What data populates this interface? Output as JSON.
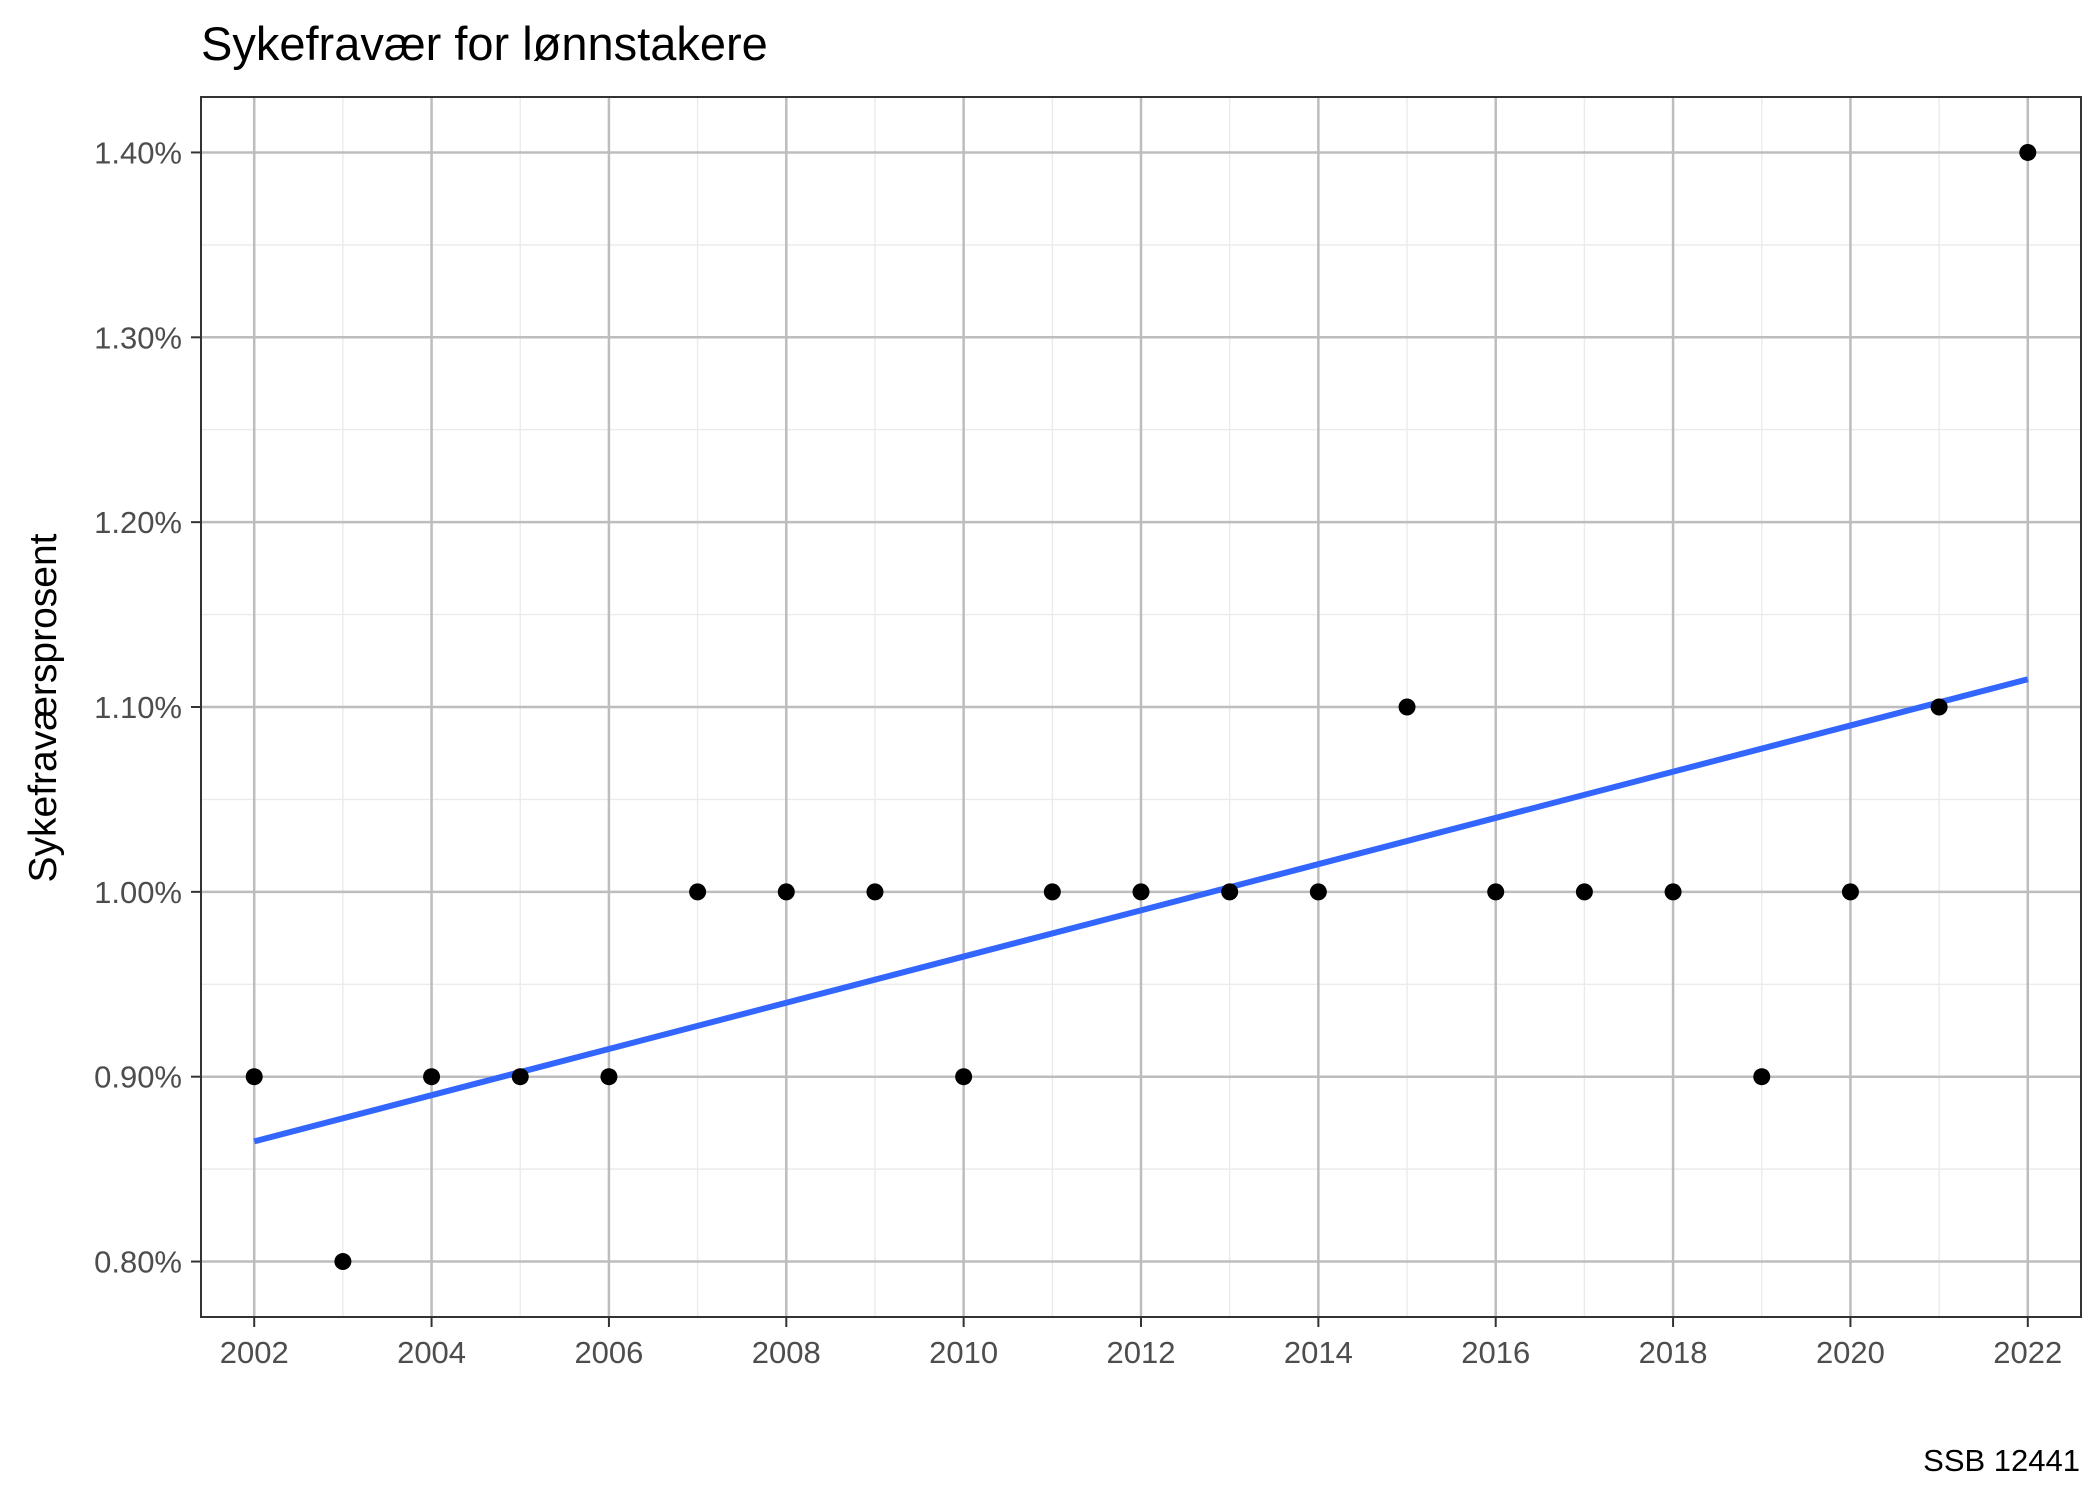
{
  "chart_data": {
    "type": "scatter",
    "title": "Sykefravær for lønnstakere",
    "xlabel": "",
    "ylabel": "Sykefraværsprosent",
    "caption": "SSB 12441",
    "x_ticks": [
      2002,
      2004,
      2006,
      2008,
      2010,
      2012,
      2014,
      2016,
      2018,
      2020,
      2022
    ],
    "y_ticks": [
      0.8,
      0.9,
      1.0,
      1.1,
      1.2,
      1.3,
      1.4
    ],
    "y_tick_labels": [
      "0.80%",
      "0.90%",
      "1.00%",
      "1.10%",
      "1.20%",
      "1.30%",
      "1.40%"
    ],
    "xlim": [
      2001.4,
      2022.6
    ],
    "ylim": [
      0.77,
      1.43
    ],
    "grid": true,
    "series": [
      {
        "type": "scatter",
        "color": "#000000",
        "x": [
          2002,
          2003,
          2004,
          2005,
          2006,
          2007,
          2008,
          2009,
          2010,
          2011,
          2012,
          2013,
          2014,
          2015,
          2016,
          2017,
          2018,
          2019,
          2020,
          2021,
          2022
        ],
        "y": [
          0.9,
          0.8,
          0.9,
          0.9,
          0.9,
          1.0,
          1.0,
          1.0,
          0.9,
          1.0,
          1.0,
          1.0,
          1.0,
          1.1,
          1.0,
          1.0,
          1.0,
          0.9,
          1.0,
          1.1,
          1.4
        ]
      },
      {
        "type": "line",
        "color": "#3366FF",
        "x": [
          2002,
          2022
        ],
        "y": [
          0.865,
          1.115
        ]
      }
    ]
  }
}
